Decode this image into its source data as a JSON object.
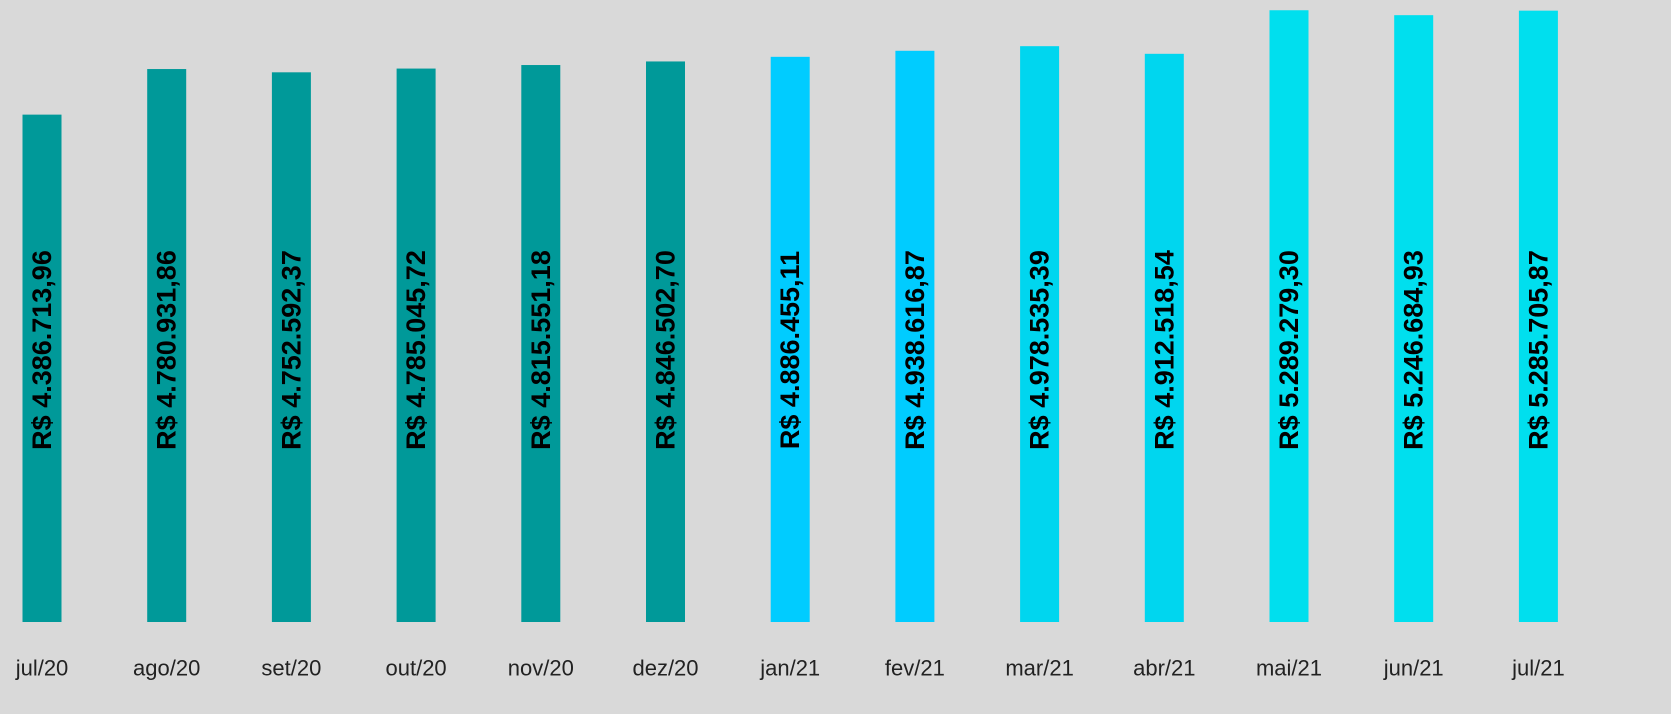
{
  "chart_data": {
    "type": "bar",
    "title": "",
    "xlabel": "",
    "ylabel": "",
    "categories": [
      "jul/20",
      "ago/20",
      "set/20",
      "out/20",
      "nov/20",
      "dez/20",
      "jan/21",
      "fev/21",
      "mar/21",
      "abr/21",
      "mai/21",
      "jun/21",
      "jul/21"
    ],
    "values": [
      4386713.96,
      4780931.86,
      4752592.37,
      4785045.72,
      4815551.18,
      4846502.7,
      4886455.11,
      4938616.87,
      4978535.39,
      4912518.54,
      5289279.3,
      5246684.93,
      5285705.87
    ],
    "data_labels": [
      "R$ 4.386.713,96",
      "R$ 4.780.931,86",
      "R$ 4.752.592,37",
      "R$ 4.785.045,72",
      "R$ 4.815.551,18",
      "R$ 4.846.502,70",
      "R$ 4.886.455,11",
      "R$ 4.938.616,87",
      "R$ 4.978.535,39",
      "R$ 4.912.518,54",
      "R$ 5.289.279,30",
      "R$ 5.246.684,93",
      "R$ 5.285.705,87"
    ],
    "bar_colors": [
      "#009999",
      "#009999",
      "#009999",
      "#009999",
      "#009999",
      "#009999",
      "#00ccff",
      "#00ccff",
      "#00d6ef",
      "#00d6ef",
      "#00dfee",
      "#00dfee",
      "#00dfee"
    ],
    "ylim": [
      0,
      5300000
    ],
    "grid": false,
    "legend": "none"
  }
}
